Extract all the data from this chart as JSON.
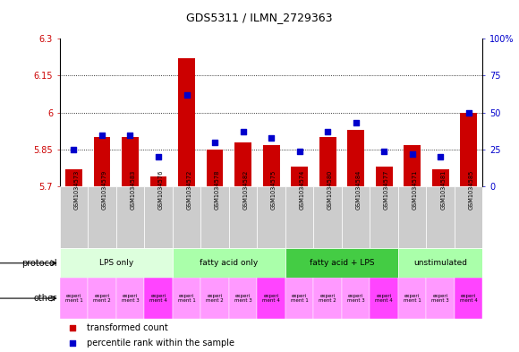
{
  "title": "GDS5311 / ILMN_2729363",
  "samples": [
    "GSM1034573",
    "GSM1034579",
    "GSM1034583",
    "GSM1034576",
    "GSM1034572",
    "GSM1034578",
    "GSM1034582",
    "GSM1034575",
    "GSM1034574",
    "GSM1034580",
    "GSM1034584",
    "GSM1034577",
    "GSM1034571",
    "GSM1034581",
    "GSM1034585"
  ],
  "transformed_count": [
    5.77,
    5.9,
    5.9,
    5.74,
    6.22,
    5.85,
    5.88,
    5.87,
    5.78,
    5.9,
    5.93,
    5.78,
    5.87,
    5.77,
    6.0
  ],
  "percentile_rank": [
    25,
    35,
    35,
    20,
    62,
    30,
    37,
    33,
    24,
    37,
    43,
    24,
    22,
    20,
    50
  ],
  "ylim_left": [
    5.7,
    6.3
  ],
  "ylim_right": [
    0,
    100
  ],
  "yticks_left": [
    5.7,
    5.85,
    6.0,
    6.15,
    6.3
  ],
  "ytick_labels_left": [
    "5.7",
    "5.85",
    "6",
    "6.15",
    "6.3"
  ],
  "yticks_right": [
    0,
    25,
    50,
    75,
    100
  ],
  "ytick_labels_right": [
    "0",
    "25",
    "50",
    "75",
    "100%"
  ],
  "hlines": [
    5.85,
    6.0,
    6.15
  ],
  "bar_color": "#cc0000",
  "dot_color": "#0000cc",
  "bar_width": 0.6,
  "protocols": [
    {
      "label": "LPS only",
      "start": 0,
      "end": 4,
      "color": "#ddffdd"
    },
    {
      "label": "fatty acid only",
      "start": 4,
      "end": 8,
      "color": "#aaffaa"
    },
    {
      "label": "fatty acid + LPS",
      "start": 8,
      "end": 12,
      "color": "#44cc44"
    },
    {
      "label": "unstimulated",
      "start": 12,
      "end": 15,
      "color": "#aaffaa"
    }
  ],
  "other_labels": [
    "experi\nment 1",
    "experi\nment 2",
    "experi\nment 3",
    "experi\nment 4",
    "experi\nment 1",
    "experi\nment 2",
    "experi\nment 3",
    "experi\nment 4",
    "experi\nment 1",
    "experi\nment 2",
    "experi\nment 3",
    "experi\nment 4",
    "experi\nment 1",
    "experi\nment 3",
    "experi\nment 4"
  ],
  "other_colors": [
    "#ff99ff",
    "#ff99ff",
    "#ff99ff",
    "#ff44ff",
    "#ff99ff",
    "#ff99ff",
    "#ff99ff",
    "#ff44ff",
    "#ff99ff",
    "#ff99ff",
    "#ff99ff",
    "#ff44ff",
    "#ff99ff",
    "#ff99ff",
    "#ff44ff"
  ],
  "legend_items": [
    {
      "label": "transformed count",
      "color": "#cc0000"
    },
    {
      "label": "percentile rank within the sample",
      "color": "#0000cc"
    }
  ],
  "plot_bg": "#ffffff",
  "sample_bg": "#cccccc",
  "axis_color_left": "#cc0000",
  "axis_color_right": "#0000cc"
}
